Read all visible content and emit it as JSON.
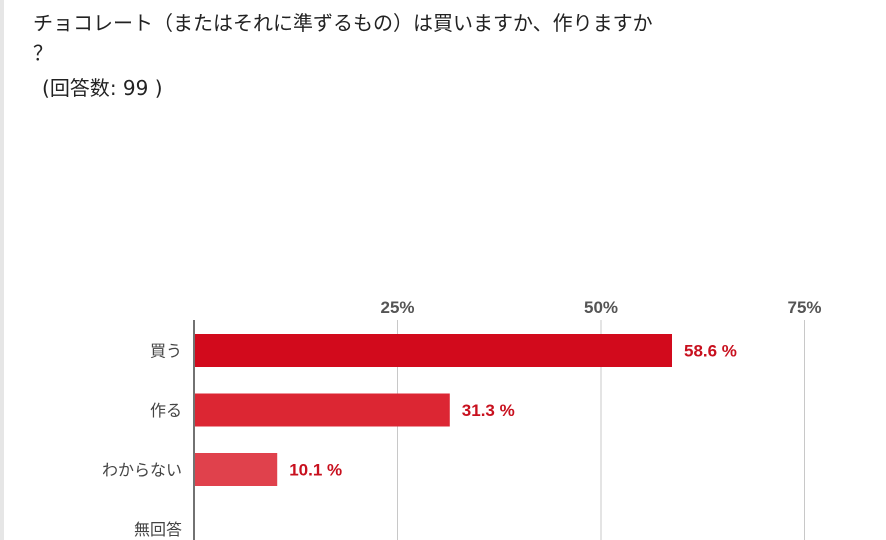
{
  "question": "チョコレート（またはそれに準ずるもの）は買いますか、作りますか\n？",
  "respondents": {
    "open": "(",
    "label": "回答数",
    "sep": ": ",
    "count": "99",
    "close": " )"
  },
  "chart_data": {
    "type": "bar",
    "orientation": "horizontal",
    "categories": [
      "買う",
      "作る",
      "わからない",
      "無回答"
    ],
    "values": [
      58.6,
      31.3,
      10.1,
      0
    ],
    "value_labels": [
      "58.6 %",
      "31.3 %",
      "10.1 %",
      ""
    ],
    "xlim": [
      0,
      100
    ],
    "ticks": [
      25,
      50,
      75
    ],
    "tick_labels": [
      "25%",
      "50%",
      "75%"
    ],
    "grid": true,
    "colors": [
      "#d20a1c",
      "#dc2633",
      "#e0414c",
      "#e0414c"
    ],
    "value_label_color": "#c8101e",
    "gridline_color": "#c8c8c8"
  }
}
